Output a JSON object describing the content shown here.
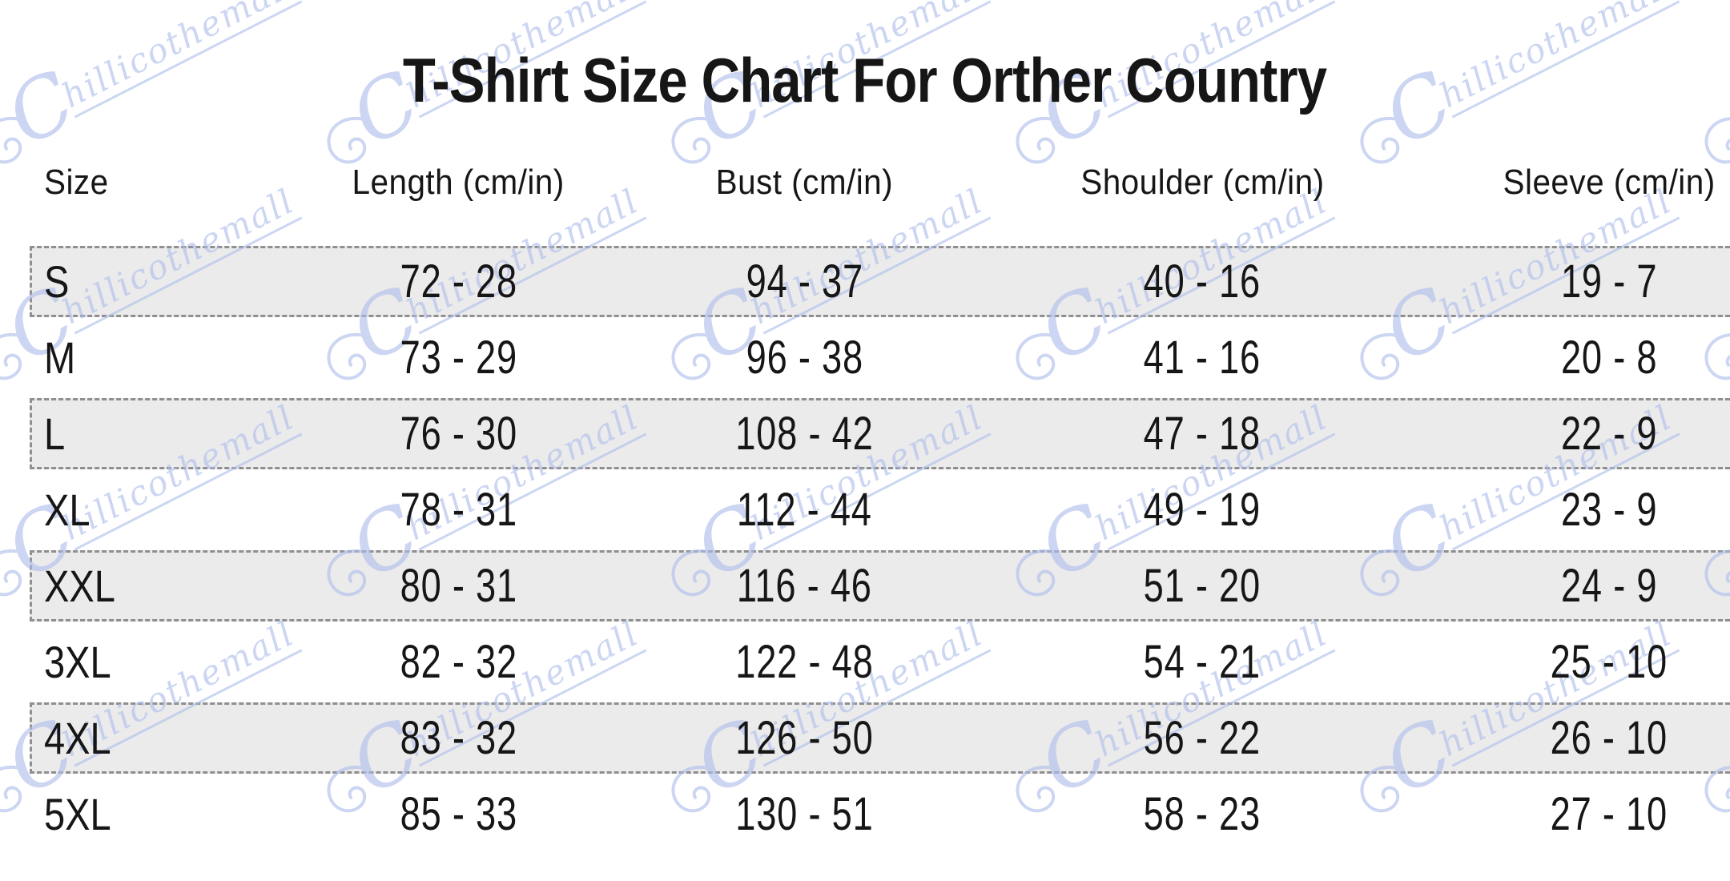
{
  "chart_data": {
    "type": "table",
    "title": "T-Shirt Size Chart For Orther Country",
    "columns": [
      "Size",
      "Length (cm/in)",
      "Bust (cm/in)",
      "Shoulder (cm/in)",
      "Sleeve (cm/in)"
    ],
    "rows": [
      [
        "S",
        "72 - 28",
        "94 - 37",
        "40 - 16",
        "19 - 7"
      ],
      [
        "M",
        "73 - 29",
        "96 - 38",
        "41 - 16",
        "20 - 8"
      ],
      [
        "L",
        "76 - 30",
        "108 - 42",
        "47 - 18",
        "22 - 9"
      ],
      [
        "XL",
        "78 - 31",
        "112 - 44",
        "49 - 19",
        "23 - 9"
      ],
      [
        "XXL",
        "80 - 31",
        "116 - 46",
        "51 - 20",
        "24 - 9"
      ],
      [
        "3XL",
        "82 - 32",
        "122 - 48",
        "54 - 21",
        "25 - 10"
      ],
      [
        "4XL",
        "83 - 32",
        "126 - 50",
        "56 - 22",
        "26 - 10"
      ],
      [
        "5XL",
        "85 - 33",
        "130 - 51",
        "58 - 23",
        "27 - 10"
      ]
    ],
    "striped_row_indexes": [
      0,
      2,
      4,
      6
    ],
    "layout": {
      "stripe_fill": "#ebebeb",
      "stripe_border": "#8f8f8f",
      "text_color": "#161616",
      "grid": "dashed-stripes",
      "legend": "none"
    }
  },
  "watermark": {
    "text": "Chillicothemall",
    "color": "#aebdeb"
  }
}
